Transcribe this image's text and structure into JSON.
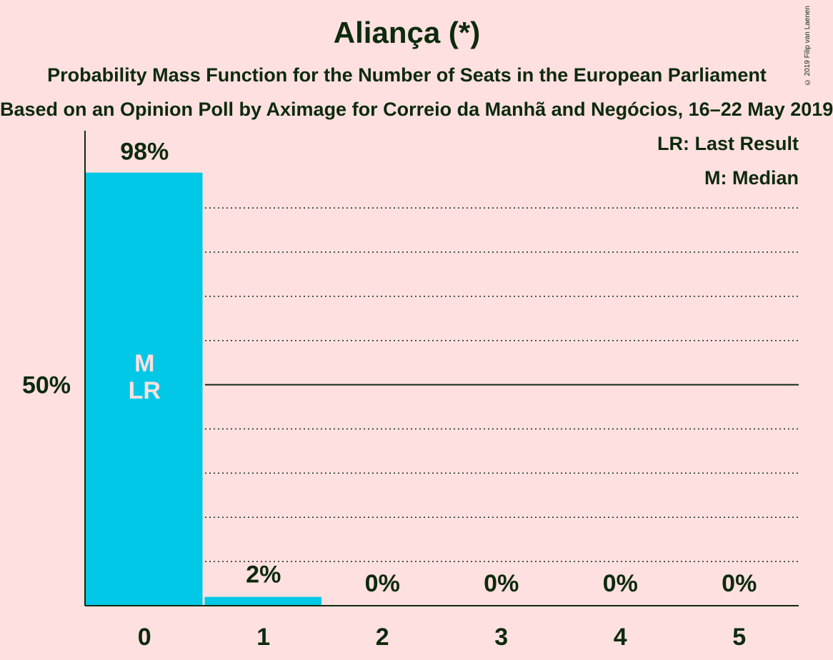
{
  "chart_data": {
    "type": "bar",
    "title": "Aliança (*)",
    "subtitle": "Probability Mass Function for the Number of Seats in the European Parliament",
    "subtitle2": "Based on an Opinion Poll by Aximage for Correio da Manhã and Negócios, 16–22 May 2019",
    "copyright": "© 2019 Filip van Laenen",
    "categories": [
      "0",
      "1",
      "2",
      "3",
      "4",
      "5"
    ],
    "values": [
      98,
      2,
      0,
      0,
      0,
      0
    ],
    "value_labels": [
      "98%",
      "2%",
      "0%",
      "0%",
      "0%",
      "0%"
    ],
    "ylim": [
      0,
      107
    ],
    "y_tick_label": "50%",
    "y_tick_value": 50,
    "gridlines": [
      10,
      20,
      30,
      40,
      60,
      70,
      80,
      90
    ],
    "median_marker": "M",
    "last_result_marker": "LR",
    "marked_category_index": 0,
    "legend": [
      "LR: Last Result",
      "M: Median"
    ],
    "legend_position": "top-right",
    "bar_color": "#00c8e6",
    "text_color": "#0d2a0d",
    "background_color": "#ffe0e0"
  }
}
